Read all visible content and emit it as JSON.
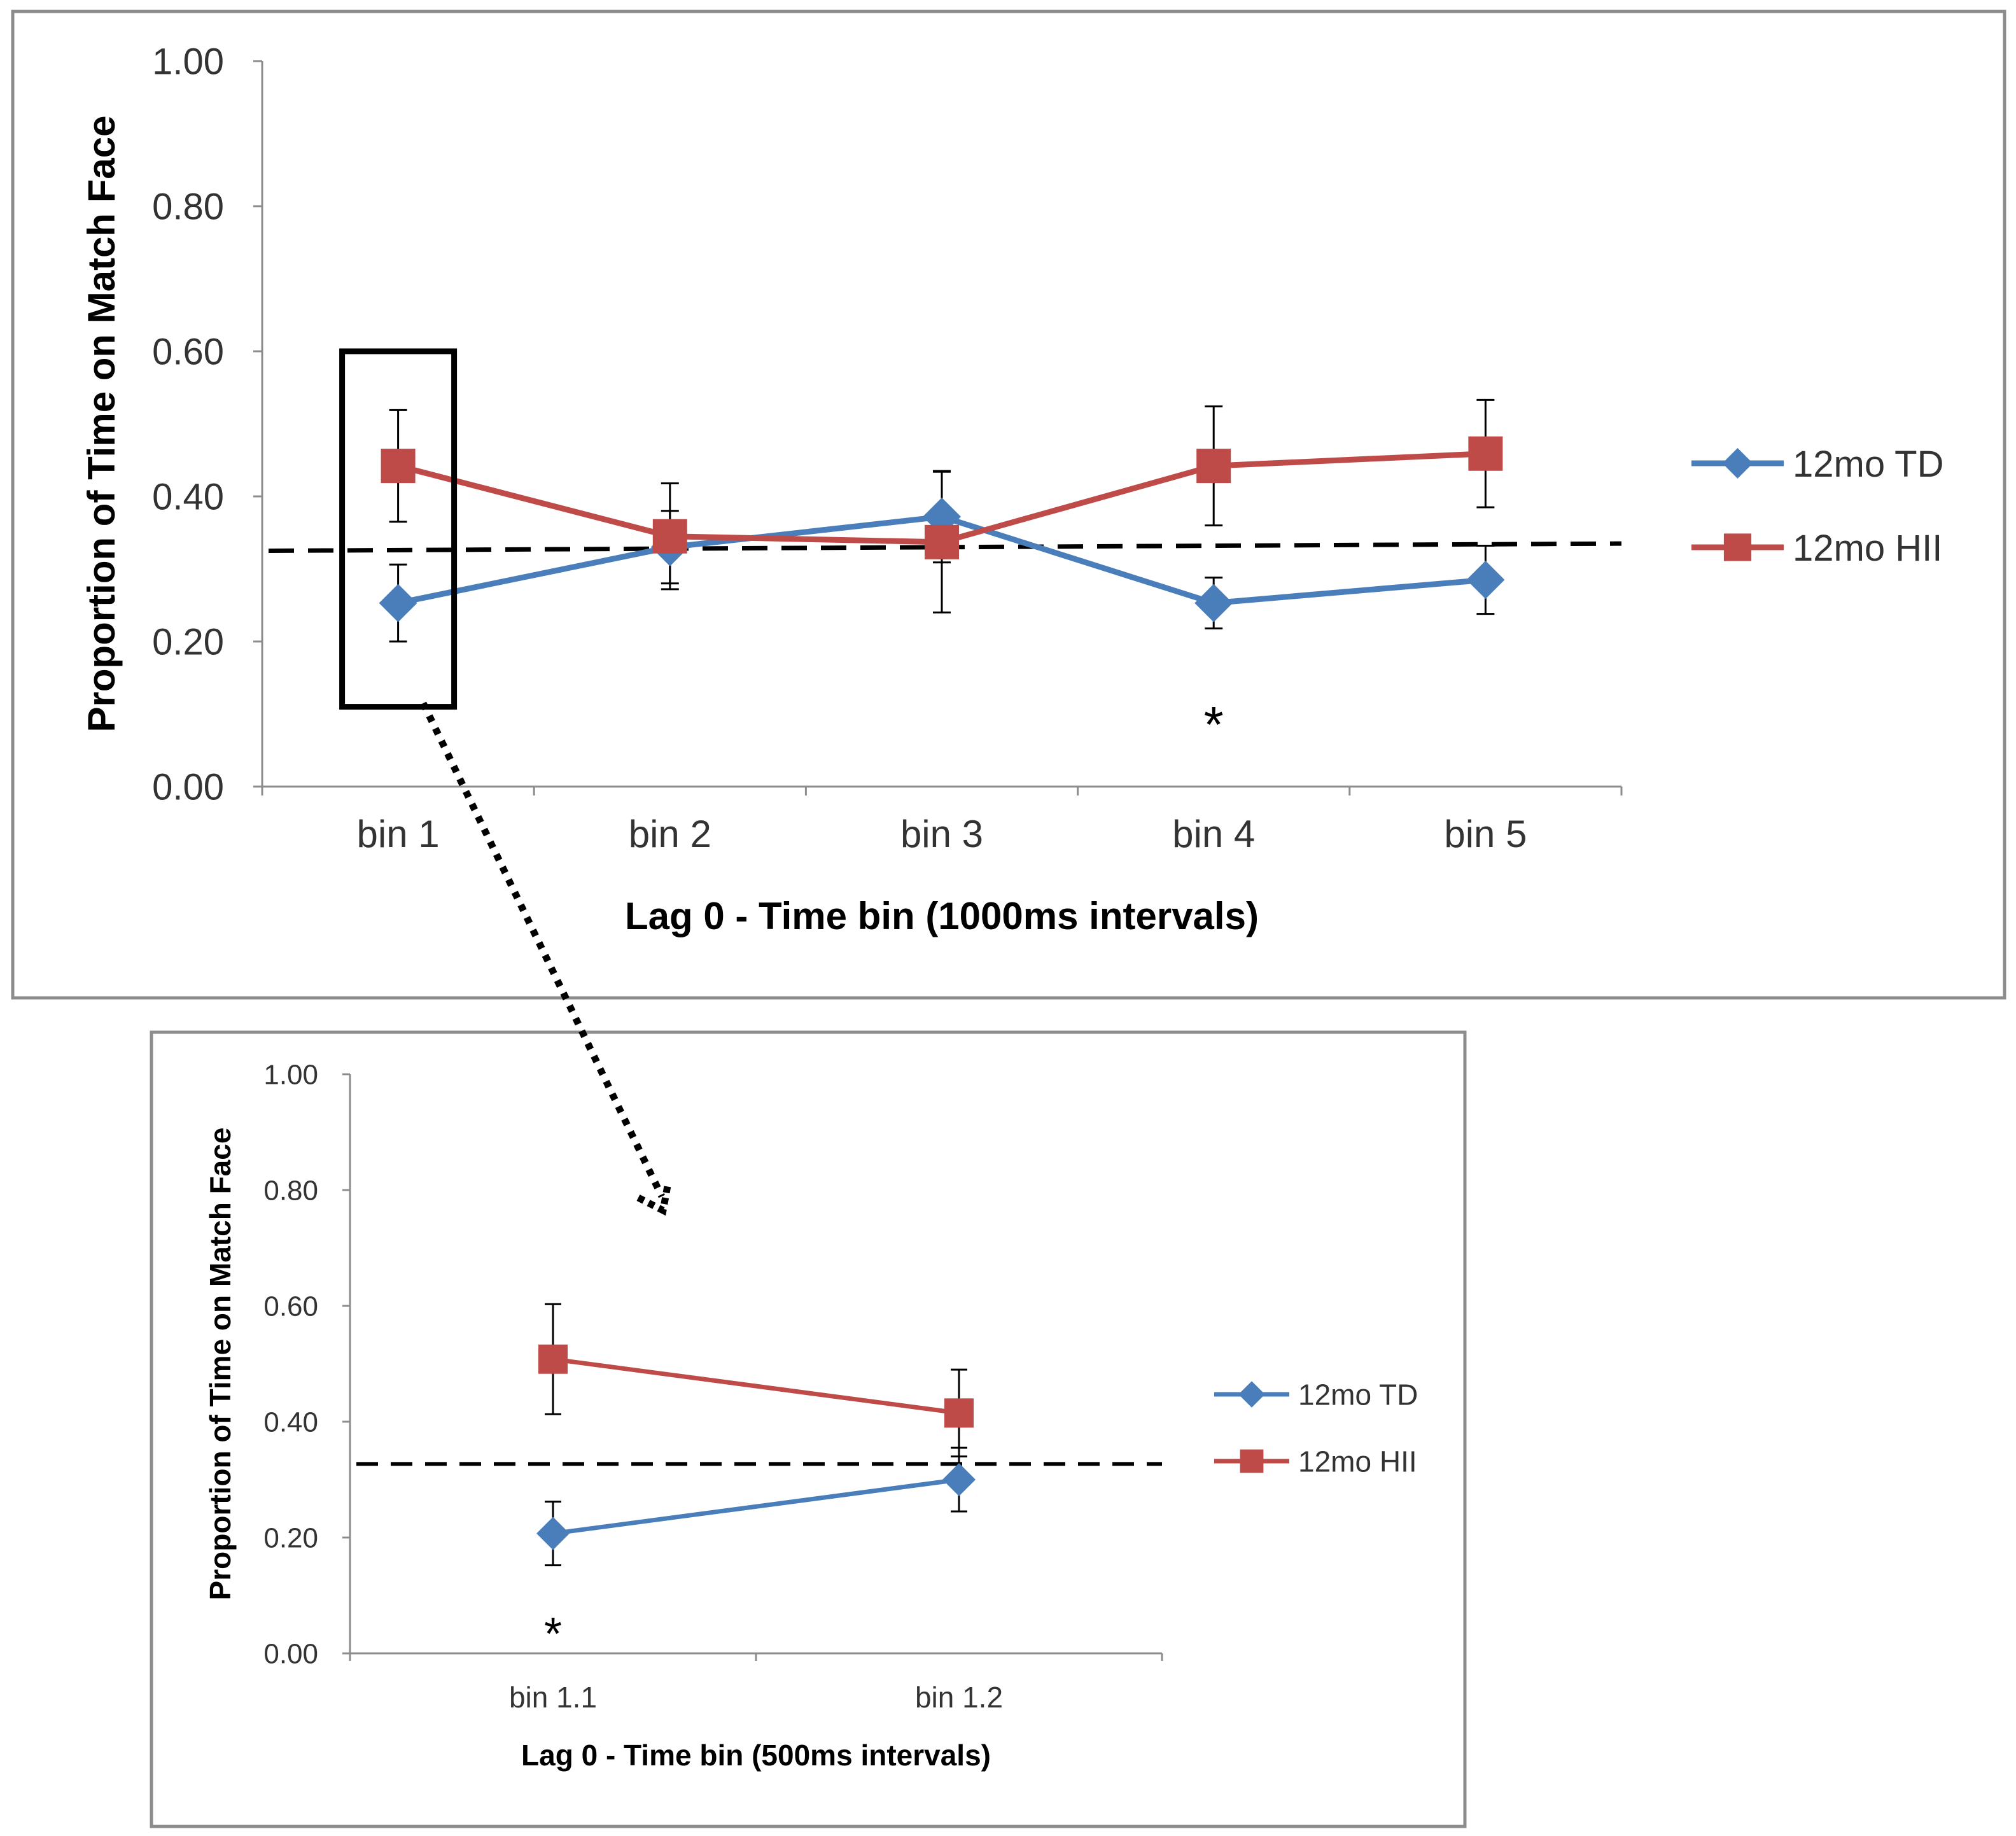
{
  "colors": {
    "td": "#4a7ebb",
    "hii": "#be4b48",
    "axis": "#8c8c8c",
    "chance": "#000000"
  },
  "chart_data": [
    {
      "id": "main",
      "type": "line",
      "title": "",
      "xlabel": "Lag 0  - Time bin (1000ms intervals)",
      "ylabel": "Proportion  of Time on Match Face",
      "ylim": [
        0,
        1
      ],
      "yticks": [
        "0.00",
        "0.20",
        "0.40",
        "0.60",
        "0.80",
        "1.00"
      ],
      "categories": [
        "bin 1",
        "bin 2",
        "bin 3",
        "bin 4",
        "bin 5"
      ],
      "series": [
        {
          "name": "12mo TD",
          "marker": "diamond",
          "values": [
            0.253,
            0.33,
            0.372,
            0.253,
            0.285
          ],
          "errors": [
            0.053,
            0.05,
            0.063,
            0.035,
            0.047
          ]
        },
        {
          "name": "12mo HII",
          "marker": "square",
          "values": [
            0.442,
            0.345,
            0.337,
            0.442,
            0.459
          ],
          "errors": [
            0.077,
            0.073,
            0.097,
            0.082,
            0.074
          ]
        }
      ],
      "chance_line": [
        0.325,
        0.335
      ],
      "annotations": [
        {
          "category": "bin 4",
          "text": "*",
          "y": 0.1
        }
      ],
      "highlight": "bin 1",
      "legend": "right"
    },
    {
      "id": "inset",
      "type": "line",
      "title": "",
      "xlabel": "Lag 0  - Time bin (500ms intervals)",
      "ylabel": "Proportion of Time on Match Face",
      "ylim": [
        0,
        1
      ],
      "yticks": [
        "0.00",
        "0.20",
        "0.40",
        "0.60",
        "0.80",
        "1.00"
      ],
      "categories": [
        "bin 1.1",
        "bin 1.2"
      ],
      "series": [
        {
          "name": "12mo TD",
          "marker": "diamond",
          "values": [
            0.207,
            0.3
          ],
          "errors": [
            0.055,
            0.055
          ]
        },
        {
          "name": "12mo HII",
          "marker": "square",
          "values": [
            0.508,
            0.415
          ],
          "errors": [
            0.095,
            0.075
          ]
        }
      ],
      "chance_line": [
        0.327,
        0.327
      ],
      "annotations": [
        {
          "category": "bin 1.1",
          "text": "*",
          "y": 0.05
        }
      ],
      "legend": "right"
    }
  ]
}
